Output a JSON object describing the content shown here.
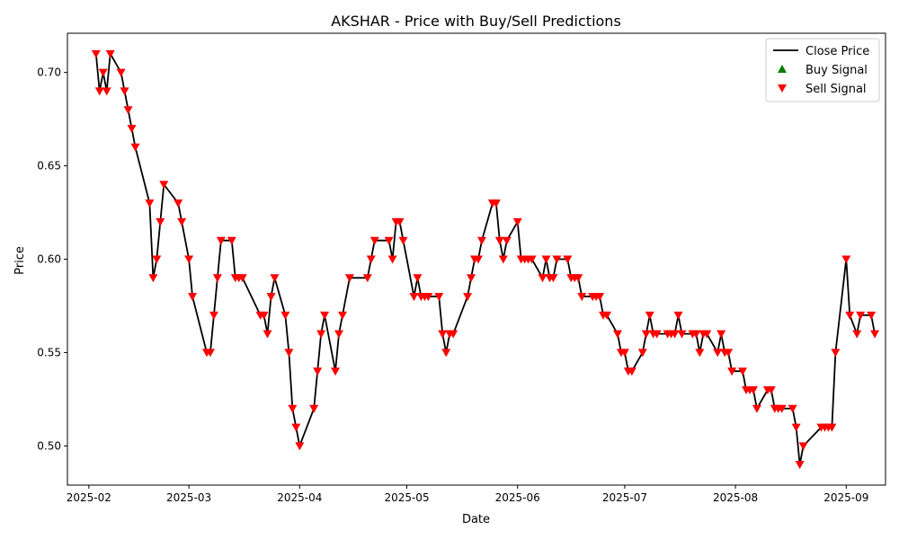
{
  "chart_data": {
    "type": "line",
    "title": "AKSHAR - Price with Buy/Sell Predictions",
    "xlabel": "Date",
    "ylabel": "Price",
    "xlim": [
      "2025-01-26",
      "2025-09-12"
    ],
    "ylim": [
      0.479,
      0.721
    ],
    "x_ticks": [
      "2025-02-01",
      "2025-03-01",
      "2025-04-01",
      "2025-05-01",
      "2025-06-01",
      "2025-07-01",
      "2025-08-01",
      "2025-09-01"
    ],
    "x_tick_labels": [
      "2025-02",
      "2025-03",
      "2025-04",
      "2025-05",
      "2025-06",
      "2025-07",
      "2025-08",
      "2025-09"
    ],
    "y_ticks": [
      0.5,
      0.55,
      0.6,
      0.65,
      0.7
    ],
    "y_tick_labels": [
      "0.50",
      "0.55",
      "0.60",
      "0.65",
      "0.70"
    ],
    "grid": false,
    "legend_position": "top-right",
    "legend": {
      "close_price": "Close Price",
      "buy_signal": "Buy Signal",
      "sell_signal": "Sell Signal"
    },
    "colors": {
      "close_price": "#000000",
      "buy_signal": "#008000",
      "sell_signal": "#ff0000"
    },
    "series": [
      {
        "name": "Close Price",
        "points": [
          [
            "2025-02-03",
            0.71
          ],
          [
            "2025-02-04",
            0.69
          ],
          [
            "2025-02-05",
            0.7
          ],
          [
            "2025-02-06",
            0.69
          ],
          [
            "2025-02-07",
            0.71
          ],
          [
            "2025-02-10",
            0.7
          ],
          [
            "2025-02-11",
            0.69
          ],
          [
            "2025-02-12",
            0.68
          ],
          [
            "2025-02-13",
            0.67
          ],
          [
            "2025-02-14",
            0.66
          ],
          [
            "2025-02-18",
            0.63
          ],
          [
            "2025-02-19",
            0.59
          ],
          [
            "2025-02-20",
            0.6
          ],
          [
            "2025-02-21",
            0.62
          ],
          [
            "2025-02-22",
            0.64
          ],
          [
            "2025-02-26",
            0.63
          ],
          [
            "2025-02-27",
            0.62
          ],
          [
            "2025-03-01",
            0.6
          ],
          [
            "2025-03-02",
            0.58
          ],
          [
            "2025-03-06",
            0.55
          ],
          [
            "2025-03-07",
            0.55
          ],
          [
            "2025-03-08",
            0.57
          ],
          [
            "2025-03-09",
            0.59
          ],
          [
            "2025-03-10",
            0.61
          ],
          [
            "2025-03-13",
            0.61
          ],
          [
            "2025-03-14",
            0.59
          ],
          [
            "2025-03-15",
            0.59
          ],
          [
            "2025-03-16",
            0.59
          ],
          [
            "2025-03-21",
            0.57
          ],
          [
            "2025-03-22",
            0.57
          ],
          [
            "2025-03-23",
            0.56
          ],
          [
            "2025-03-24",
            0.58
          ],
          [
            "2025-03-25",
            0.59
          ],
          [
            "2025-03-28",
            0.57
          ],
          [
            "2025-03-29",
            0.55
          ],
          [
            "2025-03-30",
            0.52
          ],
          [
            "2025-03-31",
            0.51
          ],
          [
            "2025-04-01",
            0.5
          ],
          [
            "2025-04-05",
            0.52
          ],
          [
            "2025-04-06",
            0.54
          ],
          [
            "2025-04-07",
            0.56
          ],
          [
            "2025-04-08",
            0.57
          ],
          [
            "2025-04-11",
            0.54
          ],
          [
            "2025-04-12",
            0.56
          ],
          [
            "2025-04-13",
            0.57
          ],
          [
            "2025-04-15",
            0.59
          ],
          [
            "2025-04-20",
            0.59
          ],
          [
            "2025-04-21",
            0.6
          ],
          [
            "2025-04-22",
            0.61
          ],
          [
            "2025-04-26",
            0.61
          ],
          [
            "2025-04-27",
            0.6
          ],
          [
            "2025-04-28",
            0.62
          ],
          [
            "2025-04-29",
            0.62
          ],
          [
            "2025-04-30",
            0.61
          ],
          [
            "2025-05-03",
            0.58
          ],
          [
            "2025-05-04",
            0.59
          ],
          [
            "2025-05-05",
            0.58
          ],
          [
            "2025-05-06",
            0.58
          ],
          [
            "2025-05-07",
            0.58
          ],
          [
            "2025-05-10",
            0.58
          ],
          [
            "2025-05-11",
            0.56
          ],
          [
            "2025-05-12",
            0.55
          ],
          [
            "2025-05-13",
            0.56
          ],
          [
            "2025-05-14",
            0.56
          ],
          [
            "2025-05-18",
            0.58
          ],
          [
            "2025-05-19",
            0.59
          ],
          [
            "2025-05-20",
            0.6
          ],
          [
            "2025-05-21",
            0.6
          ],
          [
            "2025-05-22",
            0.61
          ],
          [
            "2025-05-25",
            0.63
          ],
          [
            "2025-05-26",
            0.63
          ],
          [
            "2025-05-27",
            0.61
          ],
          [
            "2025-05-28",
            0.6
          ],
          [
            "2025-05-29",
            0.61
          ],
          [
            "2025-06-01",
            0.62
          ],
          [
            "2025-06-02",
            0.6
          ],
          [
            "2025-06-03",
            0.6
          ],
          [
            "2025-06-04",
            0.6
          ],
          [
            "2025-06-05",
            0.6
          ],
          [
            "2025-06-08",
            0.59
          ],
          [
            "2025-06-09",
            0.6
          ],
          [
            "2025-06-10",
            0.59
          ],
          [
            "2025-06-11",
            0.59
          ],
          [
            "2025-06-12",
            0.6
          ],
          [
            "2025-06-15",
            0.6
          ],
          [
            "2025-06-16",
            0.59
          ],
          [
            "2025-06-17",
            0.59
          ],
          [
            "2025-06-18",
            0.59
          ],
          [
            "2025-06-19",
            0.58
          ],
          [
            "2025-06-22",
            0.58
          ],
          [
            "2025-06-23",
            0.58
          ],
          [
            "2025-06-24",
            0.58
          ],
          [
            "2025-06-25",
            0.57
          ],
          [
            "2025-06-26",
            0.57
          ],
          [
            "2025-06-29",
            0.56
          ],
          [
            "2025-06-30",
            0.55
          ],
          [
            "2025-07-01",
            0.55
          ],
          [
            "2025-07-02",
            0.54
          ],
          [
            "2025-07-03",
            0.54
          ],
          [
            "2025-07-06",
            0.55
          ],
          [
            "2025-07-07",
            0.56
          ],
          [
            "2025-07-08",
            0.57
          ],
          [
            "2025-07-09",
            0.56
          ],
          [
            "2025-07-10",
            0.56
          ],
          [
            "2025-07-13",
            0.56
          ],
          [
            "2025-07-14",
            0.56
          ],
          [
            "2025-07-15",
            0.56
          ],
          [
            "2025-07-16",
            0.57
          ],
          [
            "2025-07-17",
            0.56
          ],
          [
            "2025-07-20",
            0.56
          ],
          [
            "2025-07-21",
            0.56
          ],
          [
            "2025-07-22",
            0.55
          ],
          [
            "2025-07-23",
            0.56
          ],
          [
            "2025-07-24",
            0.56
          ],
          [
            "2025-07-27",
            0.55
          ],
          [
            "2025-07-28",
            0.56
          ],
          [
            "2025-07-29",
            0.55
          ],
          [
            "2025-07-30",
            0.55
          ],
          [
            "2025-07-31",
            0.54
          ],
          [
            "2025-08-03",
            0.54
          ],
          [
            "2025-08-04",
            0.53
          ],
          [
            "2025-08-05",
            0.53
          ],
          [
            "2025-08-06",
            0.53
          ],
          [
            "2025-08-07",
            0.52
          ],
          [
            "2025-08-10",
            0.53
          ],
          [
            "2025-08-11",
            0.53
          ],
          [
            "2025-08-12",
            0.52
          ],
          [
            "2025-08-13",
            0.52
          ],
          [
            "2025-08-14",
            0.52
          ],
          [
            "2025-08-17",
            0.52
          ],
          [
            "2025-08-18",
            0.51
          ],
          [
            "2025-08-19",
            0.49
          ],
          [
            "2025-08-20",
            0.5
          ],
          [
            "2025-08-25",
            0.51
          ],
          [
            "2025-08-26",
            0.51
          ],
          [
            "2025-08-27",
            0.51
          ],
          [
            "2025-08-28",
            0.51
          ],
          [
            "2025-08-29",
            0.55
          ],
          [
            "2025-09-01",
            0.6
          ],
          [
            "2025-09-02",
            0.57
          ],
          [
            "2025-09-04",
            0.56
          ],
          [
            "2025-09-05",
            0.57
          ],
          [
            "2025-09-08",
            0.57
          ],
          [
            "2025-09-09",
            0.56
          ]
        ]
      },
      {
        "name": "Buy Signal",
        "points": []
      },
      {
        "name": "Sell Signal",
        "points": "all_close_price_points"
      }
    ]
  }
}
